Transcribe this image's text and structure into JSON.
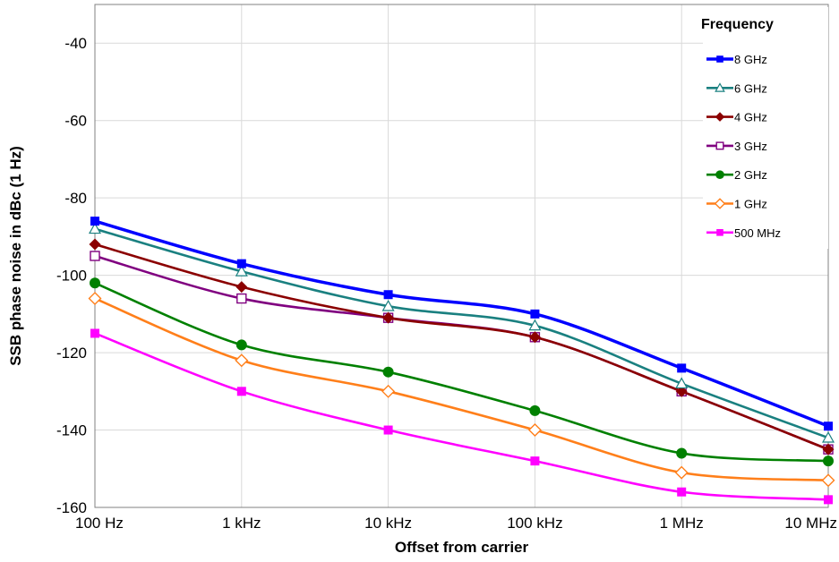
{
  "chart_data": {
    "type": "line",
    "xlabel": "Offset from carrier",
    "ylabel": "SSB phase noise in dBc (1 Hz)",
    "x_scale": "log",
    "x": [
      100,
      1000,
      10000,
      100000,
      1000000,
      10000000
    ],
    "x_tick_labels": [
      "100 Hz",
      "1 kHz",
      "10 kHz",
      "100 kHz",
      "1 MHz",
      "10 MHz"
    ],
    "ylim": [
      -160,
      -30
    ],
    "y_ticks": [
      -160,
      -140,
      -120,
      -100,
      -80,
      -60,
      -40
    ],
    "y_tick_labels": [
      "-160",
      "-140",
      "-120",
      "-100",
      "-80",
      "-60",
      "-40"
    ],
    "grid": true,
    "legend": {
      "title": "Frequency",
      "position": "top-right"
    },
    "series": [
      {
        "name": "8 GHz",
        "color": "#0000ff",
        "marker": "square-filled",
        "values": [
          -86,
          -97,
          -105,
          -110,
          -124,
          -139
        ]
      },
      {
        "name": "6 GHz",
        "color": "#1a8080",
        "marker": "triangle-open",
        "values": [
          -88,
          -99,
          -108,
          -113,
          -128,
          -142
        ]
      },
      {
        "name": "4 GHz",
        "color": "#8b0000",
        "marker": "diamond-filled",
        "values": [
          -92,
          -103,
          -111,
          -116,
          -130,
          -145
        ]
      },
      {
        "name": "3 GHz",
        "color": "#800080",
        "marker": "square-open",
        "values": [
          -95,
          -106,
          -111,
          -116,
          -130,
          -145
        ]
      },
      {
        "name": "2 GHz",
        "color": "#008000",
        "marker": "circle-filled",
        "values": [
          -102,
          -118,
          -125,
          -135,
          -146,
          -148
        ]
      },
      {
        "name": "1 GHz",
        "color": "#ff7f1a",
        "marker": "diamond-open",
        "values": [
          -106,
          -122,
          -130,
          -140,
          -151,
          -153
        ]
      },
      {
        "name": "500 MHz",
        "color": "#ff00ff",
        "marker": "square-filled",
        "values": [
          -115,
          -130,
          -140,
          -148,
          -156,
          -158
        ]
      }
    ]
  }
}
